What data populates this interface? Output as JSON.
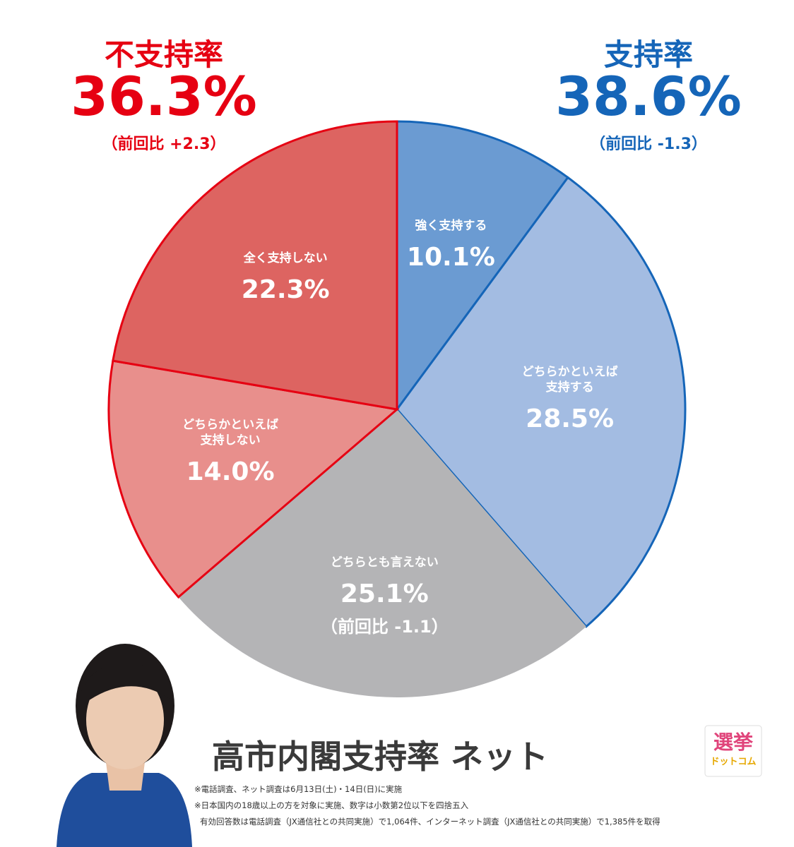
{
  "chart_data": {
    "type": "pie",
    "title": "高市内閣支持率 ネット",
    "categories": [
      "強く支持する",
      "どちらかといえば\n支持する",
      "どちらとも言えない",
      "どちらかといえば\n支持しない",
      "全く支持しない"
    ],
    "values": [
      10.1,
      28.5,
      25.1,
      14.0,
      22.3
    ],
    "value_labels": [
      "10.1%",
      "28.5%",
      "25.1%",
      "14.0%",
      "22.3%"
    ],
    "colors": [
      "#6b9bd2",
      "#a3bce2",
      "#b4b4b6",
      "#e88f8c",
      "#dd6461"
    ],
    "edge_colors": [
      "#1565b8",
      "#1565b8",
      null,
      "#e60012",
      "#e60012"
    ],
    "annotations": {
      "gray_change": "（前回比 -1.1）",
      "disapprove": {
        "label": "不支持率",
        "value": "36.3%",
        "change": "（前回比 +2.3）",
        "color": "#e60012"
      },
      "approve": {
        "label": "支持率",
        "value": "38.6%",
        "change": "（前回比 -1.3）",
        "color": "#1565b8"
      }
    },
    "notes": [
      "※電話調査、ネット調査は6月13日(土)・14日(日)に実施",
      "※日本国内の18歳以上の方を対象に実施、数字は小数第2位以下を四捨五入",
      "有効回答数は電話調査（JX通信社との共同実施）で1,064件、インターネット調査（JX通信社との共同実施）で1,385件を取得"
    ],
    "logo": {
      "top": "選挙",
      "bottom": "ドットコム"
    }
  }
}
